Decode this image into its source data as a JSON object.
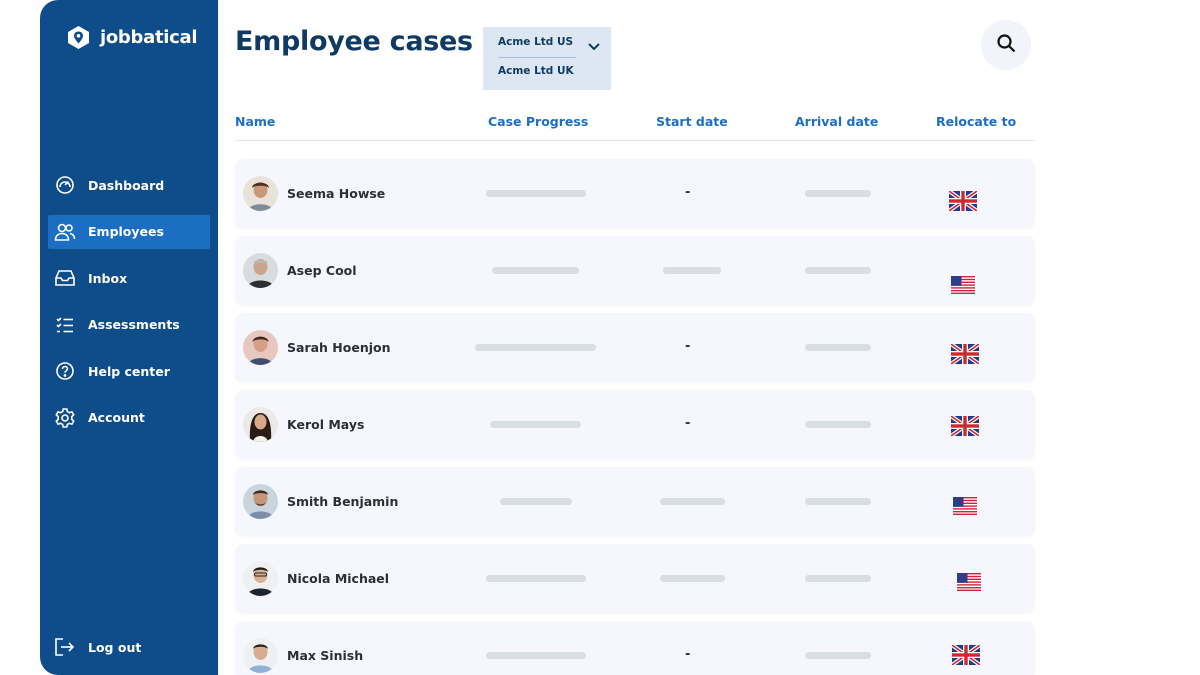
{
  "app": {
    "logo_text": "jobbatical",
    "colors": {
      "sidebar": "#0f4c8a",
      "active": "#1b6ec2",
      "title": "#103a63",
      "accent": "#1d6fc6"
    }
  },
  "sidebar": {
    "items": [
      {
        "label": "Dashboard",
        "icon": "dashboard-gauge-icon",
        "active": false
      },
      {
        "label": "Employees",
        "icon": "people-icon",
        "active": true
      },
      {
        "label": "Inbox",
        "icon": "inbox-tray-icon",
        "active": false
      },
      {
        "label": "Assessments",
        "icon": "checklist-icon",
        "active": false
      },
      {
        "label": "Help center",
        "icon": "question-circle-icon",
        "active": false
      },
      {
        "label": "Account",
        "icon": "gear-icon",
        "active": false
      }
    ],
    "logout_label": "Log out"
  },
  "header": {
    "title": "Employee cases",
    "company_options": [
      "Acme Ltd US",
      "Acme Ltd UK"
    ]
  },
  "table": {
    "columns": [
      "Name",
      "Case Progress",
      "Start date",
      "Arrival date",
      "Relocate to"
    ],
    "rows": [
      {
        "name": "Seema Howse",
        "start": "-",
        "arrival": "",
        "relocate_flag": "uk-flag"
      },
      {
        "name": "Asep Cool",
        "start": "",
        "arrival": "",
        "relocate_flag": "us-flag"
      },
      {
        "name": "Sarah Hoenjon",
        "start": "-",
        "arrival": "",
        "relocate_flag": "uk-flag"
      },
      {
        "name": "Kerol Mays",
        "start": "-",
        "arrival": "",
        "relocate_flag": "uk-flag"
      },
      {
        "name": "Smith Benjamin",
        "start": "",
        "arrival": "",
        "relocate_flag": "us-flag"
      },
      {
        "name": "Nicola Michael",
        "start": "",
        "arrival": "",
        "relocate_flag": "us-flag"
      },
      {
        "name": "Max Sinish",
        "start": "-",
        "arrival": "",
        "relocate_flag": "uk-flag"
      }
    ]
  }
}
